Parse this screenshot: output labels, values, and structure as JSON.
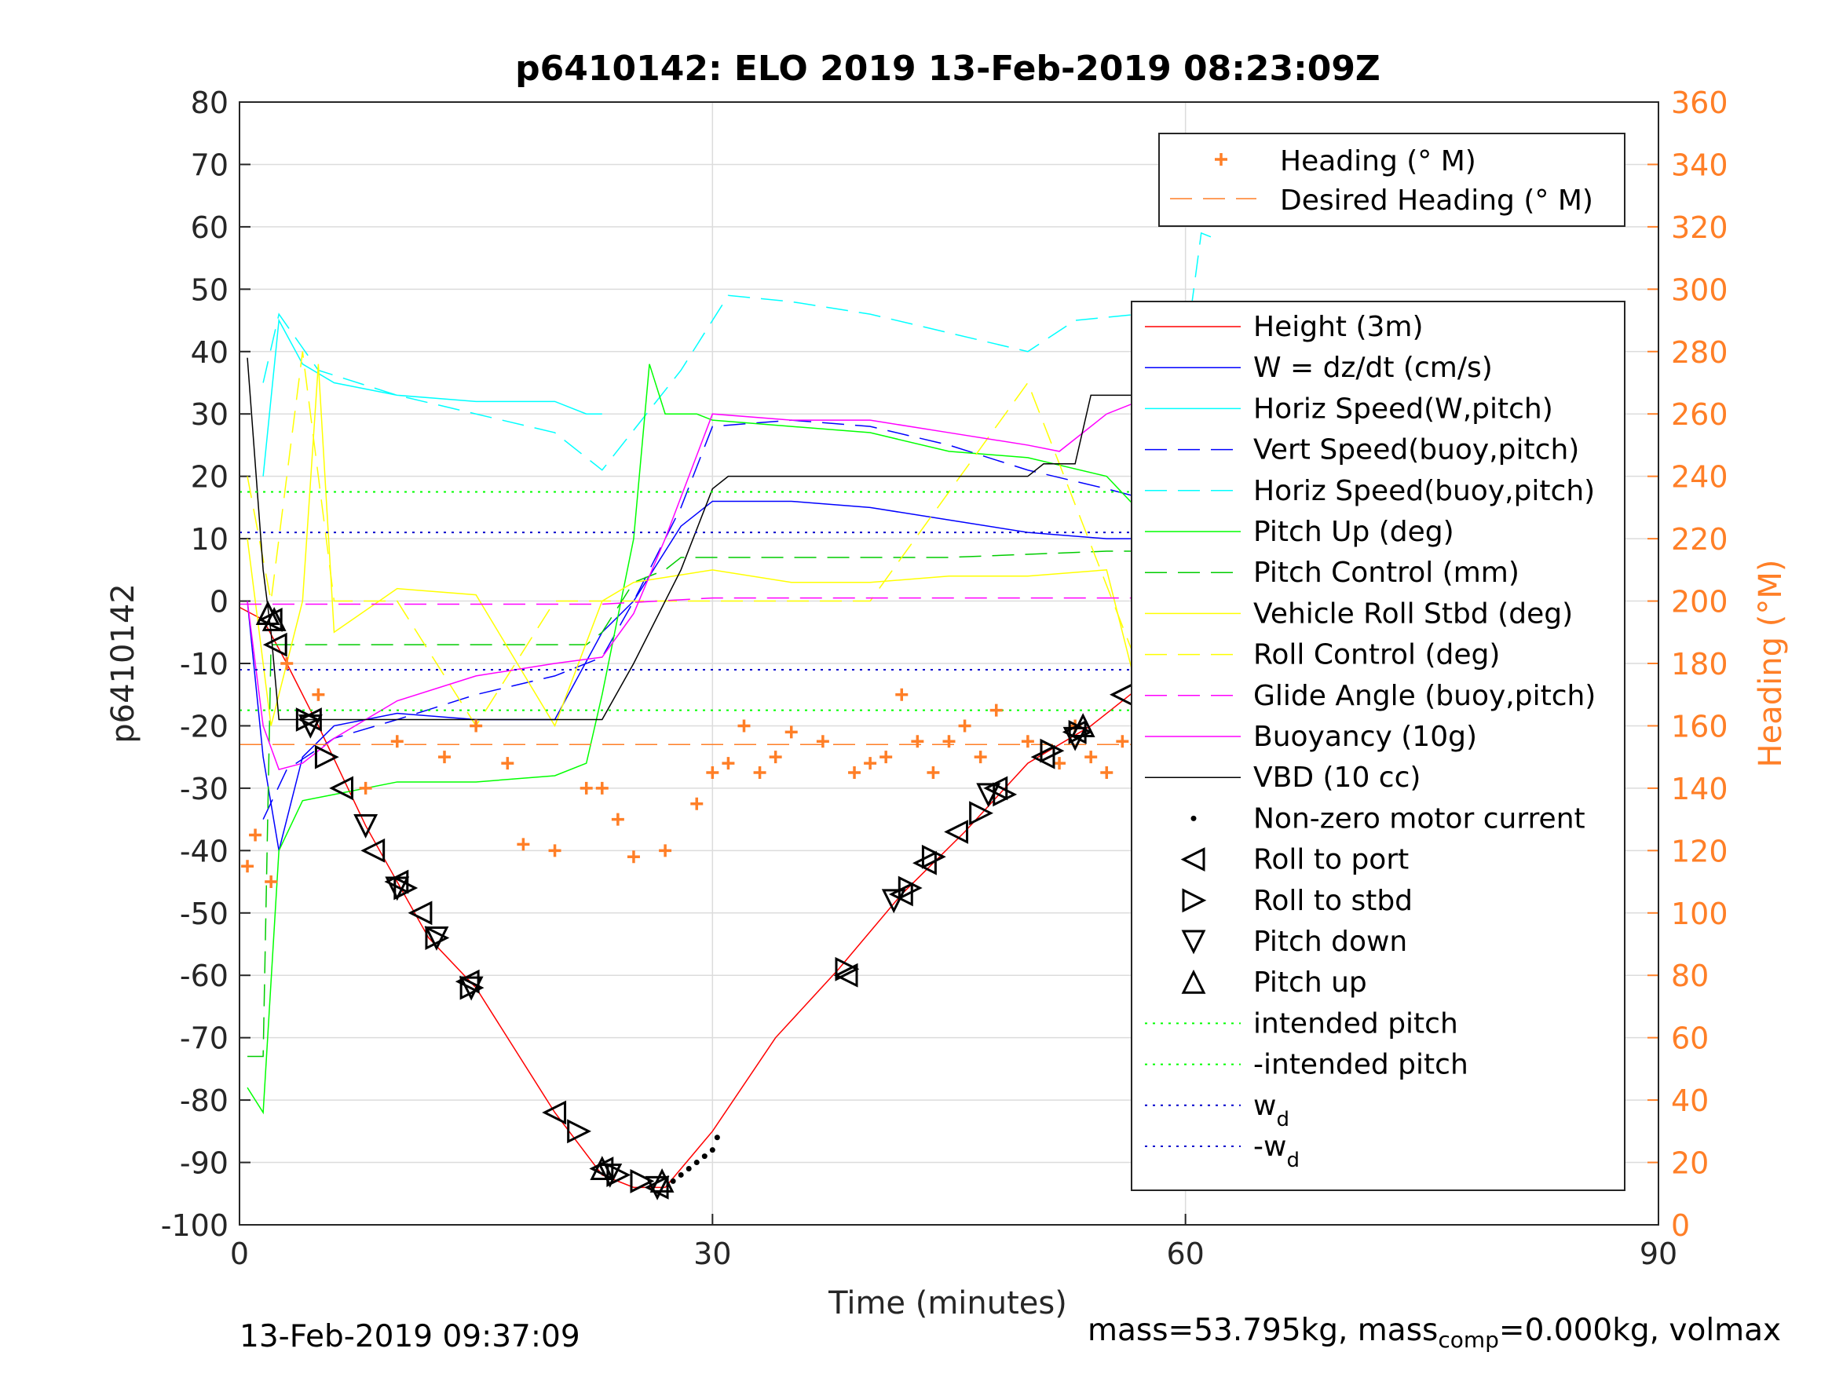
{
  "chart_data": {
    "type": "line",
    "title": "p6410142: ELO 2019 13-Feb-2019 08:23:09Z",
    "xlabel": "Time (minutes)",
    "ylabel": "p6410142",
    "y2label": "Heading (°M)",
    "xlim": [
      0,
      90
    ],
    "ylim": [
      -100,
      80
    ],
    "y2lim": [
      0,
      360
    ],
    "xticks": [
      "0",
      "30",
      "60",
      "90"
    ],
    "yticks": [
      "80",
      "70",
      "60",
      "50",
      "40",
      "30",
      "20",
      "10",
      "0",
      "-10",
      "-20",
      "-30",
      "-40",
      "-50",
      "-60",
      "-70",
      "-80",
      "-90",
      "-100"
    ],
    "y2ticks": [
      "360",
      "340",
      "320",
      "300",
      "280",
      "260",
      "240",
      "220",
      "200",
      "180",
      "160",
      "140",
      "120",
      "100",
      "80",
      "60",
      "40",
      "20",
      "0"
    ],
    "grid": true,
    "colors": {
      "height": "#ff0000",
      "w": "#0000ff",
      "horiz_w": "#00ffff",
      "vert_buoy": "#0000ff",
      "horiz_buoy": "#00ffff",
      "pitch_up": "#00ff00",
      "pitch_control": "#00cc00",
      "roll": "#ffff00",
      "roll_control": "#ffff00",
      "glide": "#ff00ff",
      "buoyancy": "#ff00ff",
      "vbd": "#000000",
      "heading": "#ff7f27",
      "intended": "#00ff00",
      "wd": "#0000cc"
    },
    "legend_heading": [
      "Heading (° M)",
      "Desired Heading (° M)"
    ],
    "legend_main": [
      "Height (3m)",
      "W = dz/dt (cm/s)",
      "Horiz Speed(W,pitch)",
      "Vert Speed(buoy,pitch)",
      "Horiz Speed(buoy,pitch)",
      "Pitch Up (deg)",
      "Pitch Control (mm)",
      "Vehicle Roll Stbd (deg)",
      "Roll Control (deg)",
      "Glide Angle (buoy,pitch)",
      "Buoyancy (10g)",
      "VBD (10 cc)",
      "Non-zero motor current",
      "Roll to port",
      "Roll to stbd",
      "Pitch down",
      "Pitch up",
      "intended pitch",
      "-intended pitch",
      "w",
      "-w"
    ],
    "legend_sub_d": "d",
    "legend_placement": "right",
    "series": [
      {
        "name": "Height (3m)",
        "axis": "left",
        "x": [
          0,
          1.5,
          3,
          5,
          8,
          10,
          12,
          15,
          20,
          23,
          25,
          27,
          30,
          34,
          38,
          42,
          46,
          50,
          54,
          58,
          62
        ],
        "y": [
          -1,
          -3,
          -10,
          -20,
          -36,
          -45,
          -54,
          -62,
          -82,
          -92,
          -94,
          -94,
          -85,
          -70,
          -59,
          -47,
          -37,
          -26,
          -20,
          -12,
          0
        ]
      },
      {
        "name": "W = dz/dt (cm/s)",
        "axis": "left",
        "x": [
          0.5,
          1.5,
          2.5,
          4,
          6,
          10,
          15,
          20,
          23,
          25,
          28,
          30,
          35,
          40,
          45,
          50,
          55,
          60,
          61,
          62
        ],
        "y": [
          0,
          -25,
          -40,
          -25,
          -20,
          -18,
          -19,
          -19,
          -5,
          0,
          12,
          16,
          16,
          15,
          13,
          11,
          10,
          10,
          20,
          32
        ]
      },
      {
        "name": "Horiz Speed(W,pitch)",
        "axis": "left",
        "x": [
          1.5,
          2.5,
          4,
          6,
          10,
          15,
          20,
          22,
          23
        ],
        "y": [
          20,
          45,
          38,
          35,
          33,
          32,
          32,
          30,
          30
        ]
      },
      {
        "name": "Vert Speed(buoy,pitch)",
        "axis": "left",
        "x": [
          1.5,
          3,
          6,
          10,
          15,
          20,
          23,
          25,
          28,
          30,
          35,
          40,
          45,
          50,
          55,
          58,
          60,
          62
        ],
        "y": [
          -35,
          -27,
          -22,
          -19,
          -15,
          -12,
          -9,
          0,
          15,
          28,
          29,
          28,
          25,
          21,
          18,
          16,
          15,
          32
        ]
      },
      {
        "name": "Horiz Speed(buoy,pitch)",
        "axis": "left",
        "x": [
          1.5,
          2.5,
          5,
          10,
          15,
          20,
          23,
          28,
          31,
          35,
          40,
          45,
          50,
          53,
          57,
          60,
          61,
          62
        ],
        "y": [
          35,
          46,
          37,
          33,
          30,
          27,
          21,
          37,
          49,
          48,
          46,
          43,
          40,
          45,
          46,
          40,
          59,
          58
        ]
      },
      {
        "name": "Pitch Up (deg)",
        "axis": "left",
        "x": [
          0.5,
          1.5,
          2.5,
          4,
          6,
          10,
          15,
          20,
          22,
          23,
          25,
          26,
          27,
          29,
          30,
          35,
          40,
          45,
          50,
          55,
          58,
          60,
          61,
          62
        ],
        "y": [
          -78,
          -82,
          -40,
          -32,
          -31,
          -29,
          -29,
          -28,
          -26,
          -15,
          10,
          38,
          30,
          30,
          29,
          28,
          27,
          24,
          23,
          20,
          12,
          8,
          28,
          0
        ]
      },
      {
        "name": "Pitch Control (mm)",
        "axis": "left",
        "x": [
          0.5,
          1.5,
          2,
          3,
          22,
          23,
          25,
          27,
          28,
          35,
          45,
          55,
          62
        ],
        "y": [
          -73,
          -73,
          -7,
          -7,
          -7,
          -5,
          3,
          5,
          7,
          7,
          7,
          8,
          8
        ]
      },
      {
        "name": "Vehicle Roll Stbd (deg)",
        "axis": "left",
        "x": [
          0.5,
          2,
          4,
          5,
          6,
          10,
          15,
          20,
          23,
          25,
          30,
          35,
          40,
          45,
          50,
          55,
          58,
          60,
          62
        ],
        "y": [
          10,
          -20,
          0,
          38,
          -5,
          2,
          1,
          -20,
          0,
          3,
          5,
          3,
          3,
          4,
          4,
          5,
          -25,
          8,
          6
        ]
      },
      {
        "name": "Roll Control (deg)",
        "axis": "left",
        "x": [
          0.5,
          2,
          4,
          6,
          10,
          15,
          20,
          23,
          30,
          40,
          50,
          60,
          62
        ],
        "y": [
          20,
          0,
          40,
          0,
          0,
          -20,
          0,
          0,
          0,
          0,
          35,
          -30,
          0
        ]
      },
      {
        "name": "Glide Angle (buoy,pitch)",
        "axis": "left",
        "x": [
          0,
          10,
          20,
          23,
          30,
          40,
          50,
          60,
          62
        ],
        "y": [
          -0.5,
          -0.5,
          -0.5,
          -0.5,
          0.5,
          0.5,
          0.5,
          0.5,
          0.5
        ]
      },
      {
        "name": "Buoyancy (10g)",
        "axis": "left",
        "x": [
          0.5,
          1.5,
          2.5,
          4,
          6,
          10,
          15,
          20,
          23,
          25,
          27,
          30,
          35,
          40,
          45,
          50,
          52,
          55,
          60,
          61,
          62
        ],
        "y": [
          0,
          -20,
          -27,
          -26,
          -22,
          -16,
          -12,
          -10,
          -9,
          -2,
          10,
          30,
          29,
          29,
          27,
          25,
          24,
          30,
          35,
          40,
          38
        ]
      },
      {
        "name": "VBD (10 cc)",
        "axis": "left",
        "x": [
          0.5,
          1.5,
          2,
          2.5,
          4,
          10,
          20,
          23,
          25,
          28,
          30,
          31,
          40,
          50,
          51,
          53,
          54,
          57,
          58,
          61,
          62
        ],
        "y": [
          39,
          5,
          -5,
          -19,
          -19,
          -19,
          -19,
          -19,
          -10,
          5,
          18,
          20,
          20,
          20,
          22,
          22,
          33,
          33,
          40,
          47,
          47
        ]
      },
      {
        "name": "Heading (° M)",
        "axis": "right",
        "x": [
          0.5,
          1,
          2,
          3,
          5,
          8,
          10,
          13,
          15,
          17,
          18,
          20,
          22,
          23,
          24,
          25,
          27,
          29,
          30,
          31,
          32,
          33,
          34,
          35,
          37,
          39,
          40,
          41,
          42,
          43,
          44,
          45,
          46,
          47,
          48,
          50,
          52,
          53,
          54,
          55,
          56,
          57,
          58,
          59,
          60,
          61,
          62
        ],
        "y": [
          115,
          125,
          110,
          180,
          170,
          140,
          155,
          150,
          160,
          148,
          122,
          120,
          140,
          140,
          130,
          118,
          120,
          135,
          145,
          148,
          160,
          145,
          150,
          158,
          155,
          145,
          148,
          150,
          170,
          155,
          145,
          155,
          160,
          150,
          165,
          155,
          148,
          160,
          150,
          145,
          155,
          190,
          160,
          150,
          148,
          155,
          175
        ]
      },
      {
        "name": "Desired Heading (° M)",
        "axis": "right",
        "x": [
          0,
          62
        ],
        "y": [
          154,
          154
        ]
      },
      {
        "name": "intended pitch",
        "axis": "left",
        "x": [
          0,
          62
        ],
        "y": [
          17.5,
          17.5
        ]
      },
      {
        "name": "-intended pitch",
        "axis": "left",
        "x": [
          0,
          62
        ],
        "y": [
          -17.5,
          -17.5
        ]
      },
      {
        "name": "wd",
        "axis": "left",
        "x": [
          0,
          62
        ],
        "y": [
          11,
          11
        ]
      },
      {
        "name": "-wd",
        "axis": "left",
        "x": [
          0,
          62
        ],
        "y": [
          -11,
          -11
        ]
      },
      {
        "name": "Non-zero motor current",
        "axis": "left",
        "type": "scatter",
        "x": [
          27.5,
          28,
          28.5,
          29,
          29.5,
          30,
          30.3
        ],
        "y": [
          -93,
          -92,
          -91,
          -90,
          -89,
          -88,
          -86
        ]
      },
      {
        "name": "Roll to port",
        "axis": "left",
        "type": "marker",
        "x": [
          2,
          2.3,
          4.5,
          6.5,
          8.5,
          10,
          11.5,
          14.5,
          20,
          23,
          26.5,
          38.5,
          42,
          43.5,
          45.5,
          48,
          51,
          53,
          56,
          58,
          60
        ],
        "y": [
          -3,
          -7,
          -19,
          -30,
          -40,
          -45,
          -50,
          -61,
          -82,
          -91,
          -94,
          -60,
          -47,
          -42,
          -37,
          -30,
          -25,
          -21,
          -15,
          -10,
          -6
        ]
      },
      {
        "name": "Roll to stbd",
        "axis": "left",
        "type": "marker",
        "x": [
          4.3,
          5.5,
          10.5,
          12.5,
          14.7,
          21.5,
          24,
          25.5,
          38.5,
          42.5,
          44,
          47,
          48.5,
          51.5,
          53.3,
          57.5,
          58.5
        ],
        "y": [
          -19,
          -25,
          -46,
          -54,
          -62,
          -85,
          -92,
          -93,
          -59,
          -46,
          -41,
          -34,
          -31,
          -24,
          -21,
          -13,
          -10
        ]
      },
      {
        "name": "Pitch down",
        "axis": "left",
        "type": "marker",
        "x": [
          4.5,
          8,
          10,
          12.5,
          14.7,
          23.5,
          26.5,
          41.5,
          47.5,
          53,
          62
        ],
        "y": [
          -20,
          -36,
          -46,
          -54,
          -62,
          -92,
          -94,
          -48,
          -31,
          -22,
          -1
        ]
      },
      {
        "name": "Pitch up",
        "axis": "left",
        "type": "marker",
        "x": [
          1.8,
          2.2,
          23,
          26.8,
          53.5
        ],
        "y": [
          -2,
          -3,
          -91,
          -93,
          -20
        ]
      }
    ]
  },
  "footer": {
    "date": "13-Feb-2019 09:37:09",
    "mass_prefix": "mass=53.795kg, mass",
    "mass_sub": "comp",
    "mass_suffix": "=0.000kg, volmax"
  }
}
